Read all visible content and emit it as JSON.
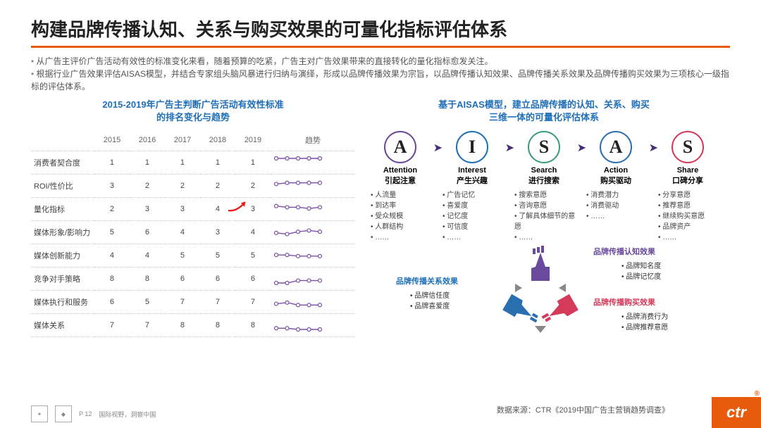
{
  "title": "构建品牌传播认知、关系与购买效果的可量化指标评估体系",
  "intro": [
    "从广告主评价广告活动有效性的标准变化来看，随着预算的吃紧，广告主对广告效果带来的直接转化的量化指标愈发关注。",
    "根据行业广告效果评估AISAS模型，并结合专家组头脑风暴进行归纳与演绎，形成以品牌传播效果为宗旨，以品牌传播认知效果、品牌传播关系效果及品牌传播购买效果为三项核心一级指标的评估体系。"
  ],
  "leftTitle": "2015-2019年广告主判断广告活动有效性标准\n的排名变化与趋势",
  "rightTitle": "基于AISAS模型，建立品牌传播的认知、关系、购买\n三维一体的可量化评估体系",
  "table": {
    "header": [
      "",
      "2015",
      "2016",
      "2017",
      "2018",
      "2019",
      "趋势"
    ],
    "rows": [
      {
        "label": "消费者契合度",
        "vals": [
          "1",
          "1",
          "1",
          "1",
          "1"
        ],
        "trend": [
          1,
          1,
          1,
          1,
          1
        ],
        "color": "#7b4fa8"
      },
      {
        "label": "ROI/性价比",
        "vals": [
          "3",
          "2",
          "2",
          "2",
          "2"
        ],
        "trend": [
          3,
          2,
          2,
          2,
          2
        ],
        "color": "#7b4fa8"
      },
      {
        "label": "量化指标",
        "vals": [
          "2",
          "3",
          "3",
          "4",
          "3"
        ],
        "trend": [
          2,
          3,
          3,
          4,
          3
        ],
        "color": "#7b4fa8",
        "arrow": true
      },
      {
        "label": "媒体形象/影响力",
        "vals": [
          "5",
          "6",
          "4",
          "3",
          "4"
        ],
        "trend": [
          5,
          6,
          4,
          3,
          4
        ],
        "color": "#7b4fa8"
      },
      {
        "label": "媒体创新能力",
        "vals": [
          "4",
          "4",
          "5",
          "5",
          "5"
        ],
        "trend": [
          4,
          4,
          5,
          5,
          5
        ],
        "color": "#7b4fa8"
      },
      {
        "label": "竞争对手策略",
        "vals": [
          "8",
          "8",
          "6",
          "6",
          "6"
        ],
        "trend": [
          8,
          8,
          6,
          6,
          6
        ],
        "color": "#7b4fa8"
      },
      {
        "label": "媒体执行和服务",
        "vals": [
          "6",
          "5",
          "7",
          "7",
          "7"
        ],
        "trend": [
          6,
          5,
          7,
          7,
          7
        ],
        "color": "#7b4fa8"
      },
      {
        "label": "媒体关系",
        "vals": [
          "7",
          "7",
          "8",
          "8",
          "8"
        ],
        "trend": [
          7,
          7,
          8,
          8,
          8
        ],
        "color": "#7b4fa8"
      }
    ]
  },
  "aisas": [
    {
      "letter": "A",
      "color": "#6a4a9c",
      "en": "Attention",
      "cn": "引起注意",
      "items": [
        "人流量",
        "到达率",
        "受众规模",
        "人群结构",
        "……"
      ]
    },
    {
      "letter": "I",
      "color": "#1e6fb8",
      "en": "Interest",
      "cn": "产生兴趣",
      "items": [
        "广告记忆",
        "喜爱度",
        "记忆度",
        "可信度",
        "……"
      ]
    },
    {
      "letter": "S",
      "color": "#3a9e7e",
      "en": "Search",
      "cn": "进行搜索",
      "items": [
        "搜索意愿",
        "咨询意愿",
        "了解具体细节的意愿",
        "……"
      ]
    },
    {
      "letter": "A",
      "color": "#2a6fb0",
      "en": "Action",
      "cn": "购买驱动",
      "items": [
        "消费潜力",
        "消费驱动",
        "……"
      ]
    },
    {
      "letter": "S",
      "color": "#d43a5a",
      "en": "Share",
      "cn": "口碑分享",
      "items": [
        "分享意愿",
        "推荐意愿",
        "继续购买意愿",
        "品牌资产",
        "……"
      ]
    }
  ],
  "effects": {
    "purple": {
      "label": "品牌传播认知效果",
      "color": "#6a4a9c",
      "items": [
        "品牌知名度",
        "品牌记忆度"
      ]
    },
    "blue": {
      "label": "品牌传播关系效果",
      "color": "#1e6fb8",
      "items": [
        "品牌信任度",
        "品牌喜爱度"
      ]
    },
    "red": {
      "label": "品牌传播购买效果",
      "color": "#d43a5a",
      "items": [
        "品牌消费行为",
        "品牌推荐意愿"
      ]
    }
  },
  "footer": {
    "page": "P 12",
    "tagline": "国际视野，洞察中国"
  },
  "source": "数据来源：CTR《2019中国广告主营销趋势调查》",
  "logo": "ctr"
}
